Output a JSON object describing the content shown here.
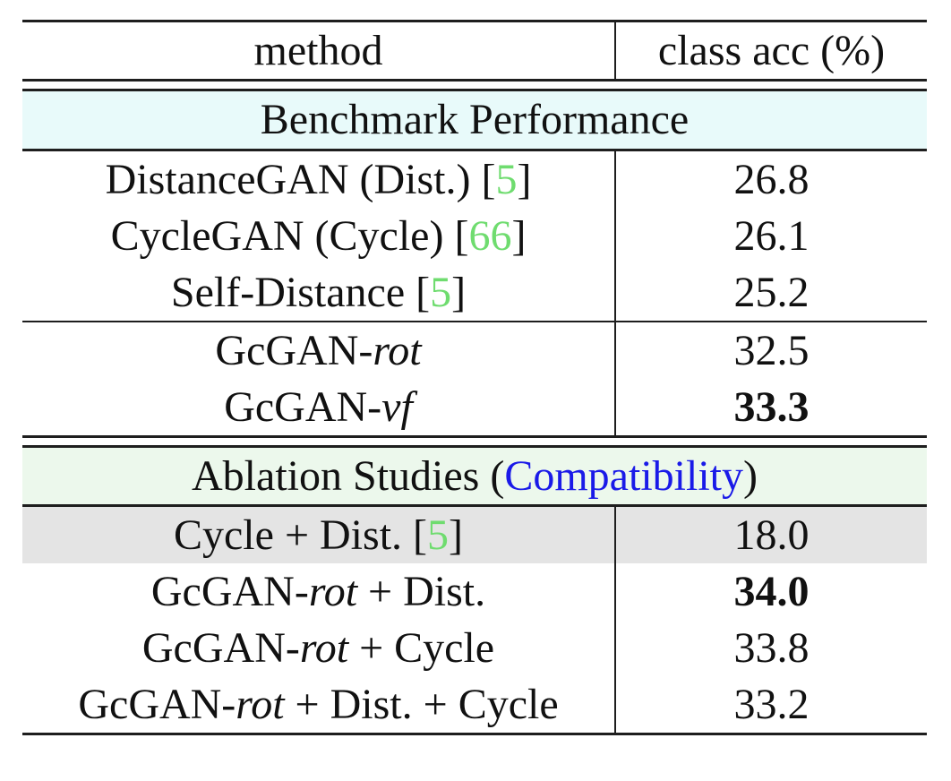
{
  "header": {
    "method": "method",
    "acc": "class acc (%)"
  },
  "sections": {
    "benchmark": {
      "title": "Benchmark Performance"
    },
    "ablation": {
      "pre": "Ablation Studies (",
      "highlight": "Compatibility",
      "post": ")"
    }
  },
  "rows": [
    {
      "t1": "DistanceGAN (Dist.) [",
      "cite": "5",
      "t2": "]",
      "acc": "26.8"
    },
    {
      "t1": "CycleGAN (Cycle) [",
      "cite": "66",
      "t2": "]",
      "acc": "26.1"
    },
    {
      "t1": "Self-Distance [",
      "cite": "5",
      "t2": "]",
      "acc": "25.2"
    },
    {
      "t1": "GcGAN-",
      "it": "rot",
      "acc": "32.5"
    },
    {
      "t1": "GcGAN-",
      "it": "vf",
      "acc": "33.3"
    },
    {
      "t1": "Cycle + Dist. [",
      "cite": "5",
      "t2": "]",
      "acc": "18.0"
    },
    {
      "t1": "GcGAN-",
      "it": "rot",
      "t2": " + Dist.",
      "acc": "34.0"
    },
    {
      "t1": "GcGAN-",
      "it": "rot",
      "t2": " + Cycle",
      "acc": "33.8"
    },
    {
      "t1": "GcGAN-",
      "it": "rot",
      "t2": " + Dist. + Cycle",
      "acc": "33.2"
    }
  ],
  "colors": {
    "benchmark_band": "#e8fafa",
    "ablation_band": "#ecf8ec",
    "highlight_row": "#e4e4e4",
    "citation_green": "#6fdc6f",
    "link_blue": "#1a1ae8",
    "rule_black": "#1e1e1e"
  },
  "chart_data": {
    "type": "table",
    "title": "",
    "columns": [
      "method",
      "class acc (%)"
    ],
    "sections": [
      {
        "name": "Benchmark Performance",
        "rows": [
          [
            "DistanceGAN (Dist.) [5]",
            26.8
          ],
          [
            "CycleGAN (Cycle) [66]",
            26.1
          ],
          [
            "Self-Distance [5]",
            25.2
          ],
          [
            "GcGAN-rot",
            32.5
          ],
          [
            "GcGAN-vf",
            33.3
          ]
        ]
      },
      {
        "name": "Ablation Studies (Compatibility)",
        "rows": [
          [
            "Cycle + Dist. [5]",
            18.0
          ],
          [
            "GcGAN-rot + Dist.",
            34.0
          ],
          [
            "GcGAN-rot + Cycle",
            33.8
          ],
          [
            "GcGAN-rot + Dist. + Cycle",
            33.2
          ]
        ]
      }
    ],
    "bold_values": [
      33.3,
      34.0
    ],
    "highlighted_row": "Cycle + Dist. [5]"
  }
}
